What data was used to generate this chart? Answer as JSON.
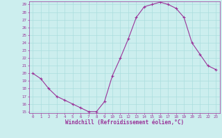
{
  "x": [
    0,
    1,
    2,
    3,
    4,
    5,
    6,
    7,
    8,
    9,
    10,
    11,
    12,
    13,
    14,
    15,
    16,
    17,
    18,
    19,
    20,
    21,
    22,
    23
  ],
  "y": [
    20,
    19.3,
    18,
    17,
    16.5,
    16,
    15.5,
    15,
    15,
    16.3,
    19.7,
    22,
    24.5,
    27.3,
    28.7,
    29,
    29.3,
    29,
    28.5,
    27.3,
    24,
    22.5,
    21,
    20.5
  ],
  "ylim": [
    14.8,
    29.4
  ],
  "xlim": [
    -0.5,
    23.5
  ],
  "yticks": [
    15,
    16,
    17,
    18,
    19,
    20,
    21,
    22,
    23,
    24,
    25,
    26,
    27,
    28,
    29
  ],
  "xticks": [
    0,
    1,
    2,
    3,
    4,
    5,
    6,
    7,
    8,
    9,
    10,
    11,
    12,
    13,
    14,
    15,
    16,
    17,
    18,
    19,
    20,
    21,
    22,
    23
  ],
  "xlabel": "Windchill (Refroidissement éolien,°C)",
  "line_color": "#993399",
  "marker": "+",
  "bg_color": "#cceeee",
  "grid_color": "#aadddd",
  "tick_color": "#993399",
  "label_color": "#993399"
}
